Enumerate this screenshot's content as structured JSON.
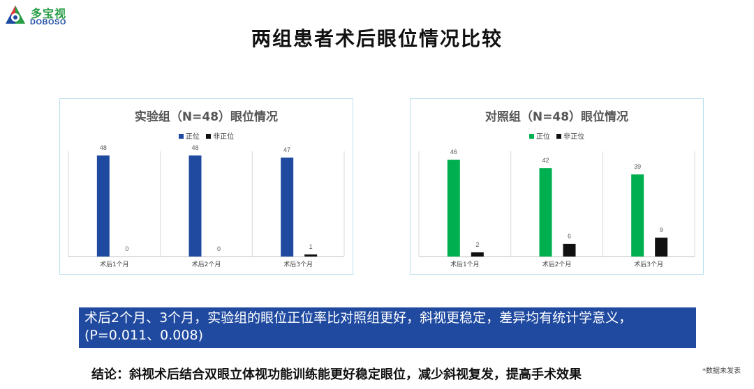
{
  "logo": {
    "name_cn": "多宝视",
    "name_en": "DOBOSO"
  },
  "title": "两组患者术后眼位情况比较",
  "chart_data": [
    {
      "type": "bar",
      "title": "实验组（N=48）眼位情况",
      "categories": [
        "术后1个月",
        "术后2个月",
        "术后3个月"
      ],
      "series": [
        {
          "name": "正位",
          "values": [
            48,
            48,
            47
          ],
          "color": "#1f4aa0"
        },
        {
          "name": "非正位",
          "values": [
            0,
            0,
            1
          ],
          "color": "#111111"
        }
      ],
      "ylim": [
        0,
        50
      ],
      "grid": "vertical separators",
      "legend_position": "top"
    },
    {
      "type": "bar",
      "title": "对照组（N=48）眼位情况",
      "categories": [
        "术后1个月",
        "术后2个月",
        "术后3个月"
      ],
      "series": [
        {
          "name": "正位",
          "values": [
            46,
            42,
            39
          ],
          "color": "#00b050"
        },
        {
          "name": "非正位",
          "values": [
            2,
            6,
            9
          ],
          "color": "#111111"
        }
      ],
      "ylim": [
        0,
        50
      ],
      "grid": "vertical separators",
      "legend_position": "top"
    }
  ],
  "summary": "术后2个月、3个月，实验组的眼位正位率比对照组更好，斜视更稳定，差异均有统计学意义，(P=0.011、0.008)",
  "conclusion": "结论：斜视术后结合双眼立体视功能训练能更好稳定眼位，减少斜视复发，提高手术效果",
  "footnote": "*数据未发表"
}
